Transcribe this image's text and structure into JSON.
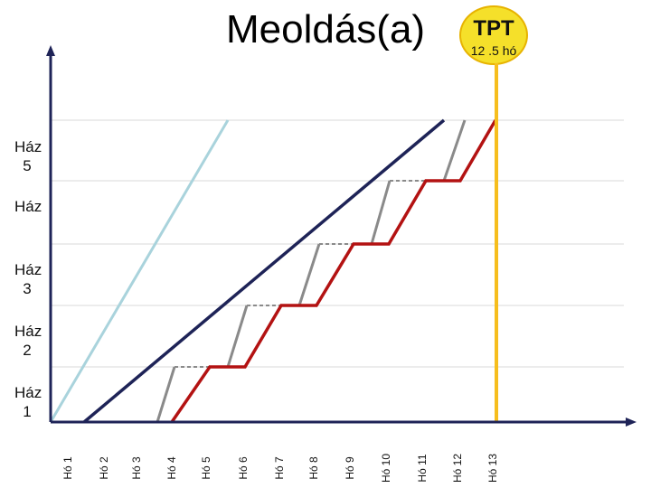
{
  "title": "Meoldás(a)",
  "tpt": {
    "label": "TPT",
    "value": "12 .5 hó"
  },
  "y_labels": [
    {
      "line1": "Ház",
      "line2": "5"
    },
    {
      "line1": "Ház",
      "line2": ""
    },
    {
      "line1": "Ház",
      "line2": "3"
    },
    {
      "line1": "Ház",
      "line2": "2"
    },
    {
      "line1": "Ház",
      "line2": "1"
    }
  ],
  "x_labels": [
    "Hó 1",
    "Hó 2",
    "Hó 3",
    "Hó 4",
    "Hó 5",
    "Hó 6",
    "Hó 7",
    "Hó 8",
    "Hó 9",
    "Hó 10",
    "Hó 11",
    "Hó 12",
    "Hó 13"
  ],
  "colors": {
    "light_blue": "#a9d3dc",
    "navy": "#1e2357",
    "gray": "#8a8a8a",
    "red": "#b31212",
    "tpt_line": "#f6be1e",
    "axis": "#1e2357",
    "grid": "#d8d8d8"
  }
}
